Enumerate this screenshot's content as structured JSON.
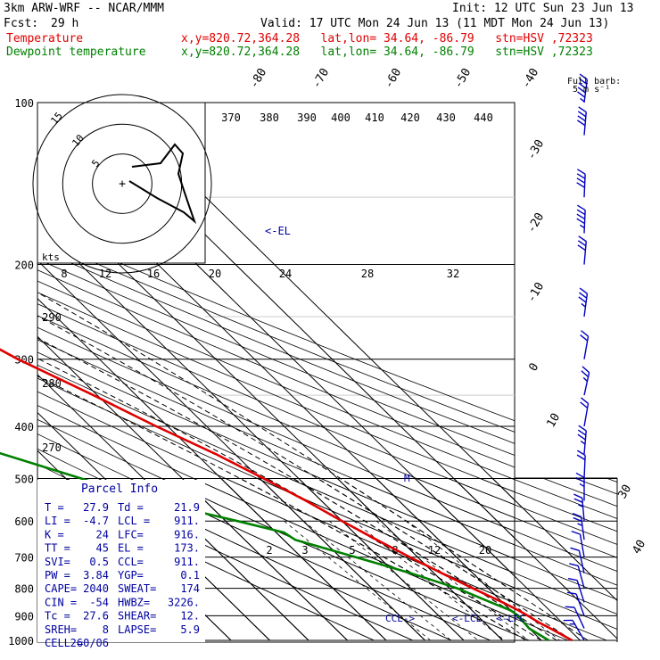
{
  "header": {
    "model": "3km ARW-WRF -- NCAR/MMM",
    "init": "Init: 12 UTC Sun 23 Jun 13",
    "fcst_label": "Fcst:",
    "fcst_value": "29 h",
    "valid": "Valid: 17 UTC Mon 24 Jun 13 (11 MDT Mon 24 Jun 13)",
    "temp_label": "Temperature",
    "dew_label": "Dewpoint temperature",
    "loc_info": "x,y=820.72,364.28   lat,lon= 34.64, -86.79   stn=HSV ,72323"
  },
  "barb_legend": {
    "line1": "Full barb:",
    "line2": "5 m s⁻¹"
  },
  "hodograph": {
    "unit": "kts",
    "ring_labels": [
      "5",
      "10",
      "15"
    ]
  },
  "annotations": {
    "el": "<-EL",
    "ccl": "CCL->",
    "lcl": "<-LCL",
    "lfc": "<-LFC",
    "marker": "M"
  },
  "parcel_info": {
    "title": "Parcel Info",
    "rows": [
      [
        "T  =",
        "27.9",
        "Td =",
        "21.9"
      ],
      [
        "LI =",
        "-4.7",
        "LCL =",
        "911."
      ],
      [
        "K  =",
        "24",
        "LFC=",
        "916."
      ],
      [
        "TT =",
        "45",
        "EL =",
        "173."
      ],
      [
        "SVI=",
        "0.5",
        "CCL=",
        "911."
      ],
      [
        "PW =",
        "3.84",
        "YGP=",
        "0.1"
      ],
      [
        "CAPE=",
        "2040",
        "SWEAT=",
        "174"
      ],
      [
        "CIN =",
        "-54",
        "HWBZ=",
        "3226."
      ],
      [
        "Tc =",
        "27.6",
        "SHEAR=",
        "12."
      ],
      [
        "SREH=",
        "8",
        "LAPSE=",
        "5.9"
      ],
      [
        "CELL =",
        "260/06",
        "",
        ""
      ]
    ]
  },
  "chart_data": {
    "type": "line",
    "title": "",
    "xlabel": "",
    "ylabel": "",
    "pressure_levels": [
      100,
      200,
      300,
      400,
      500,
      600,
      700,
      800,
      900,
      1000
    ],
    "isotherm_labels": [
      "-80",
      "-70",
      "-60",
      "-50",
      "-40",
      "-30",
      "-20",
      "-10",
      "0",
      "10",
      "20",
      "30",
      "40"
    ],
    "dry_adiabat_labels": [
      "370",
      "380",
      "390",
      "400",
      "410",
      "420",
      "430",
      "440"
    ],
    "moist_adiabat_labels": [
      "8",
      "12",
      "16",
      "20",
      "24",
      "28",
      "32"
    ],
    "theta_left_labels": [
      "290",
      "280",
      "270"
    ],
    "mixing_ratio_labels": [
      "2",
      "3",
      "5",
      "8",
      "12",
      "20"
    ],
    "series": [
      {
        "name": "Temperature",
        "color": "#e00000",
        "points": [
          [
            100,
            -73
          ],
          [
            125,
            -66
          ],
          [
            150,
            -62
          ],
          [
            175,
            -59
          ],
          [
            190,
            -59
          ],
          [
            200,
            -58
          ],
          [
            250,
            -50
          ],
          [
            300,
            -41
          ],
          [
            350,
            -31
          ],
          [
            400,
            -23
          ],
          [
            450,
            -15
          ],
          [
            500,
            -9
          ],
          [
            550,
            -4
          ],
          [
            600,
            0
          ],
          [
            650,
            4
          ],
          [
            700,
            8
          ],
          [
            750,
            12
          ],
          [
            800,
            16
          ],
          [
            850,
            20
          ],
          [
            880,
            22
          ],
          [
            900,
            23
          ],
          [
            925,
            24
          ],
          [
            950,
            25.5
          ],
          [
            1000,
            27.9
          ]
        ]
      },
      {
        "name": "Dewpoint temperature",
        "color": "#008000",
        "points": [
          [
            100,
            -100
          ],
          [
            115,
            -103
          ],
          [
            125,
            -104
          ],
          [
            150,
            -103
          ],
          [
            175,
            -99
          ],
          [
            200,
            -96
          ],
          [
            250,
            -88
          ],
          [
            300,
            -78
          ],
          [
            350,
            -78
          ],
          [
            400,
            -79
          ],
          [
            430,
            -76
          ],
          [
            500,
            -56
          ],
          [
            550,
            -44
          ],
          [
            600,
            -27
          ],
          [
            630,
            -18
          ],
          [
            650,
            -17
          ],
          [
            700,
            -6
          ],
          [
            750,
            4
          ],
          [
            800,
            12
          ],
          [
            850,
            17
          ],
          [
            880,
            20
          ],
          [
            900,
            20.5
          ],
          [
            950,
            20
          ],
          [
            1000,
            21.9
          ]
        ]
      }
    ],
    "wind_barbs_kt": [
      {
        "p": 100,
        "dir": 285,
        "spd": 45
      },
      {
        "p": 115,
        "dir": 280,
        "spd": 40
      },
      {
        "p": 150,
        "dir": 275,
        "spd": 40
      },
      {
        "p": 175,
        "dir": 275,
        "spd": 35
      },
      {
        "p": 200,
        "dir": 280,
        "spd": 30
      },
      {
        "p": 250,
        "dir": 285,
        "spd": 25
      },
      {
        "p": 300,
        "dir": 290,
        "spd": 20
      },
      {
        "p": 350,
        "dir": 295,
        "spd": 15
      },
      {
        "p": 400,
        "dir": 290,
        "spd": 20
      },
      {
        "p": 450,
        "dir": 280,
        "spd": 25
      },
      {
        "p": 500,
        "dir": 275,
        "spd": 20
      },
      {
        "p": 550,
        "dir": 270,
        "spd": 15
      },
      {
        "p": 600,
        "dir": 260,
        "spd": 15
      },
      {
        "p": 650,
        "dir": 255,
        "spd": 15
      },
      {
        "p": 700,
        "dir": 250,
        "spd": 10
      },
      {
        "p": 750,
        "dir": 245,
        "spd": 10
      },
      {
        "p": 800,
        "dir": 240,
        "spd": 10
      },
      {
        "p": 850,
        "dir": 235,
        "spd": 10
      },
      {
        "p": 900,
        "dir": 230,
        "spd": 10
      },
      {
        "p": 950,
        "dir": 220,
        "spd": 10
      },
      {
        "p": 1000,
        "dir": 210,
        "spd": 5
      }
    ],
    "hodograph_uv_kts": [
      [
        -2,
        0
      ],
      [
        -5,
        -4
      ],
      [
        -10,
        -6
      ],
      [
        -15,
        -8
      ],
      [
        -18,
        -12
      ],
      [
        -20,
        -18
      ],
      [
        -18,
        -22
      ],
      [
        -16,
        -26
      ],
      [
        -12,
        -28
      ],
      [
        -10,
        -32
      ],
      [
        -14,
        -36
      ]
    ]
  }
}
